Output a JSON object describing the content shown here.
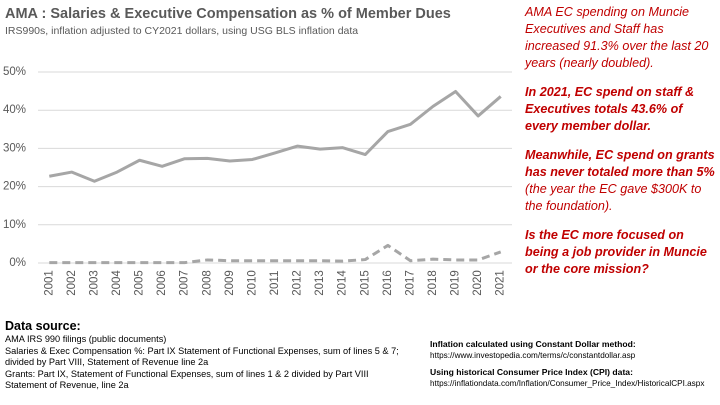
{
  "chart_data": {
    "type": "line",
    "title": "AMA : Salaries & Executive Compensation as % of Member Dues",
    "subtitle": "IRS990s, inflation adjusted to CY2021 dollars, using USG BLS inflation data",
    "categories": [
      "2001",
      "2002",
      "2003",
      "2004",
      "2005",
      "2006",
      "2007",
      "2008",
      "2009",
      "2010",
      "2011",
      "2012",
      "2013",
      "2014",
      "2015",
      "2016",
      "2017",
      "2018",
      "2019",
      "2020",
      "2021"
    ],
    "series": [
      {
        "color": "#a6a6a6",
        "values": [
          22.7,
          23.8,
          21.4,
          23.8,
          26.9,
          25.3,
          27.3,
          27.4,
          26.7,
          27.1,
          28.8,
          30.6,
          29.8,
          30.2,
          28.4,
          34.4,
          36.3,
          41.0,
          44.9,
          38.5,
          43.6
        ]
      },
      {
        "color": "#a6a6a6",
        "values": [
          0.1,
          0.1,
          0.1,
          0.1,
          0.1,
          0.1,
          0.1,
          0.8,
          0.6,
          0.6,
          0.6,
          0.6,
          0.6,
          0.5,
          0.9,
          4.6,
          0.6,
          1.0,
          0.8,
          0.8,
          2.9
        ]
      }
    ],
    "ylim": [
      0,
      50
    ],
    "yticks": [
      {
        "value": 0,
        "label": "0%"
      },
      {
        "value": 10,
        "label": "10%"
      },
      {
        "value": 20,
        "label": "20%"
      },
      {
        "value": 30,
        "label": "30%"
      },
      {
        "value": 40,
        "label": "40%"
      },
      {
        "value": 50,
        "label": "50%"
      }
    ],
    "grid": true
  },
  "annotations": [
    [
      "AMA EC spending on Muncie Executives and Staff has increased 91.3% over the last 20 years (nearly doubled)."
    ],
    [
      "In 2021, EC spend on staff & Executives totals 43.6% of every member dollar."
    ],
    [
      "Meanwhile, EC spend on grants has never totaled more than 5%",
      " (the year the EC gave $300K to the foundation)."
    ],
    [
      "Is the EC more focused on being a job provider in Muncie or the core mission?"
    ]
  ],
  "data_source": {
    "title": "Data source:",
    "lines": [
      "AMA IRS 990 filings (public documents)",
      "Salaries & Exec Compensation %: Part IX Statement of Functional Expenses, sum of lines 5 & 7; divided by Part VIII, Statement of Revenue line 2a",
      "Grants: Part IX, Statement of Functional Expenses, sum of lines 1 & 2 divided by Part VIII Statement of Revenue, line 2a"
    ]
  },
  "method": [
    {
      "title": "Inflation calculated using Constant Dollar method:",
      "url": "https://www.investopedia.com/terms/c/constantdollar.asp"
    },
    {
      "title": "Using historical Consumer Price Index (CPI) data:",
      "url": "https://inflationdata.com/Inflation/Consumer_Price_Index/HistoricalCPI.aspx"
    }
  ]
}
